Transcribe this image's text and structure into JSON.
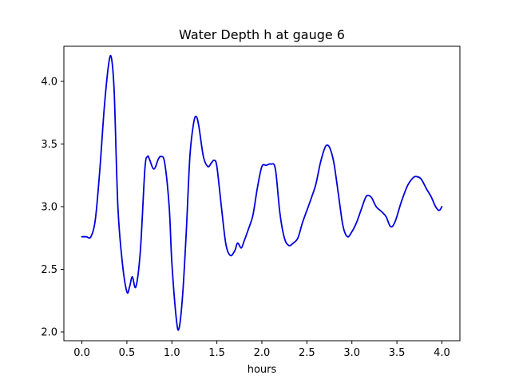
{
  "chart_data": {
    "type": "line",
    "title": "Water Depth h at gauge 6",
    "xlabel": "hours",
    "ylabel": "",
    "xlim": [
      -0.2,
      4.2
    ],
    "ylim": [
      1.93,
      4.28
    ],
    "xticks": [
      0.0,
      0.5,
      1.0,
      1.5,
      2.0,
      2.5,
      3.0,
      3.5,
      4.0
    ],
    "xtick_labels": [
      "0.0",
      "0.5",
      "1.0",
      "1.5",
      "2.0",
      "2.5",
      "3.0",
      "3.5",
      "4.0"
    ],
    "yticks": [
      2.0,
      2.5,
      3.0,
      3.5,
      4.0
    ],
    "ytick_labels": [
      "2.0",
      "2.5",
      "3.0",
      "3.5",
      "4.0"
    ],
    "grid": false,
    "legend": false,
    "series": [
      {
        "color": "#0000dd",
        "x": [
          0.0,
          0.05,
          0.1,
          0.15,
          0.2,
          0.25,
          0.3,
          0.33,
          0.36,
          0.4,
          0.45,
          0.5,
          0.53,
          0.56,
          0.6,
          0.65,
          0.7,
          0.73,
          0.75,
          0.8,
          0.85,
          0.88,
          0.92,
          0.97,
          1.0,
          1.05,
          1.08,
          1.12,
          1.16,
          1.2,
          1.24,
          1.27,
          1.3,
          1.35,
          1.4,
          1.44,
          1.47,
          1.5,
          1.55,
          1.6,
          1.65,
          1.7,
          1.73,
          1.77,
          1.8,
          1.85,
          1.9,
          1.95,
          2.0,
          2.05,
          2.1,
          2.15,
          2.2,
          2.25,
          2.3,
          2.35,
          2.4,
          2.45,
          2.5,
          2.55,
          2.6,
          2.65,
          2.7,
          2.73,
          2.76,
          2.8,
          2.85,
          2.9,
          2.95,
          3.0,
          3.05,
          3.1,
          3.15,
          3.18,
          3.22,
          3.27,
          3.33,
          3.38,
          3.43,
          3.48,
          3.55,
          3.62,
          3.68,
          3.72,
          3.77,
          3.83,
          3.88,
          3.93,
          3.97,
          4.0
        ],
        "y": [
          2.76,
          2.76,
          2.76,
          2.9,
          3.3,
          3.8,
          4.15,
          4.18,
          3.9,
          3.0,
          2.55,
          2.32,
          2.36,
          2.44,
          2.36,
          2.65,
          3.3,
          3.4,
          3.38,
          3.3,
          3.38,
          3.4,
          3.35,
          3.0,
          2.55,
          2.1,
          2.03,
          2.3,
          2.8,
          3.4,
          3.66,
          3.72,
          3.64,
          3.4,
          3.32,
          3.35,
          3.37,
          3.32,
          3.0,
          2.7,
          2.61,
          2.65,
          2.71,
          2.67,
          2.72,
          2.82,
          2.93,
          3.15,
          3.32,
          3.33,
          3.34,
          3.3,
          2.95,
          2.75,
          2.69,
          2.71,
          2.75,
          2.87,
          2.97,
          3.07,
          3.18,
          3.35,
          3.47,
          3.49,
          3.46,
          3.35,
          3.1,
          2.85,
          2.76,
          2.8,
          2.87,
          2.97,
          3.07,
          3.09,
          3.07,
          3.0,
          2.96,
          2.92,
          2.84,
          2.88,
          3.04,
          3.17,
          3.23,
          3.24,
          3.22,
          3.14,
          3.08,
          3.0,
          2.97,
          3.0
        ]
      }
    ]
  }
}
